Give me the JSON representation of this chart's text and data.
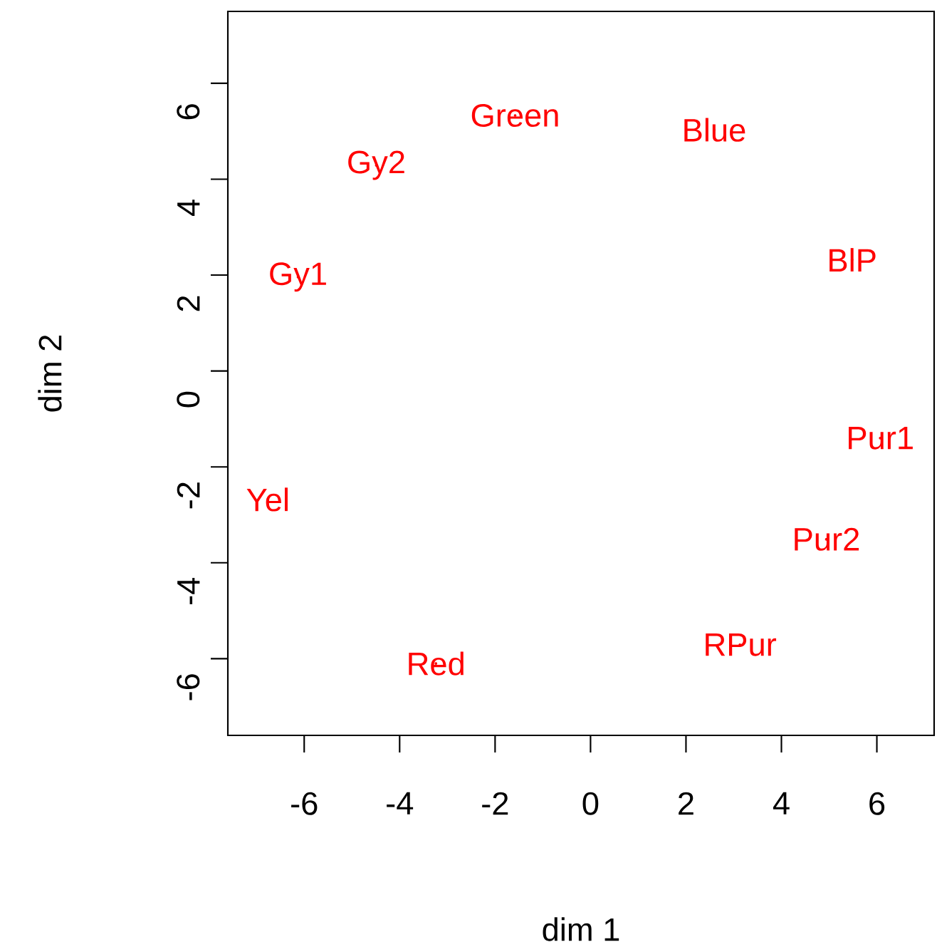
{
  "chart_data": {
    "type": "scatter",
    "xlabel": "dim 1",
    "ylabel": "dim 2",
    "x": [
      -1.58,
      2.59,
      -4.49,
      -6.13,
      5.48,
      6.07,
      -6.76,
      4.94,
      3.13,
      -3.24
    ],
    "values": [
      5.33,
      5.03,
      4.29,
      1.96,
      2.32,
      -1.4,
      -2.68,
      -3.51,
      -5.71,
      -6.1
    ],
    "value_labels": [
      "Green",
      "Blue",
      "Gy2",
      "Gy1",
      "BlP",
      "Pur1",
      "Yel",
      "Pur2",
      "RPur",
      "Red"
    ],
    "color": "#ff0000",
    "xlim": [
      -7.6,
      7.2
    ],
    "ylim": [
      -7.6,
      7.5
    ],
    "xticks": [
      -6,
      -4,
      -2,
      0,
      2,
      4,
      6
    ],
    "yticks": [
      -6,
      -4,
      -2,
      0,
      2,
      4,
      6
    ]
  }
}
